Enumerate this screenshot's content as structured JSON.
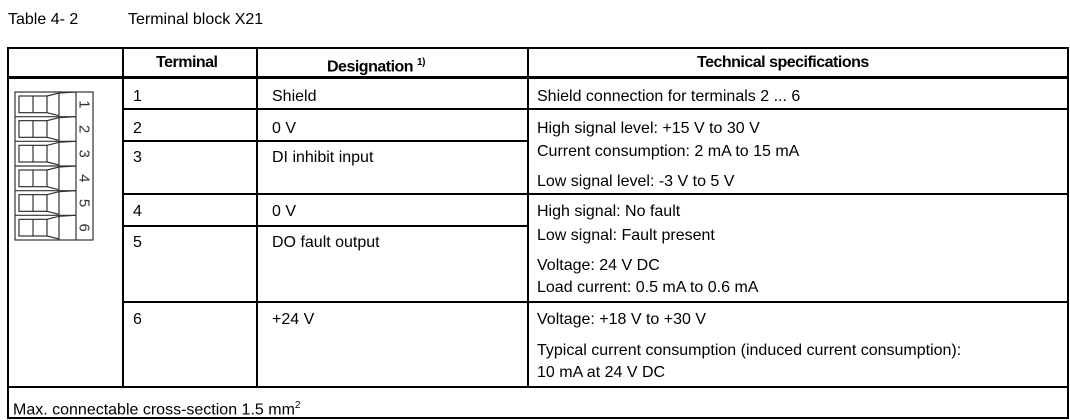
{
  "caption": {
    "number": "Table 4- 2",
    "title": "Terminal block X21"
  },
  "headers": {
    "terminal": "Terminal",
    "designation": "Designation",
    "designation_footnote": "1)",
    "specs": "Technical specifications"
  },
  "connector_labels": [
    "1",
    "2",
    "3",
    "4",
    "5",
    "6"
  ],
  "rows": [
    {
      "terminal": "1",
      "designation": "Shield"
    },
    {
      "terminal": "2",
      "designation": "0 V"
    },
    {
      "terminal": "3",
      "designation": "DI inhibit input"
    },
    {
      "terminal": "4",
      "designation": "0 V"
    },
    {
      "terminal": "5",
      "designation": "DO fault output"
    },
    {
      "terminal": "6",
      "designation": "+24 V"
    }
  ],
  "specs": [
    "Shield connection for terminals 2 ... 6",
    "High signal level: +15 V to 30 V",
    "Current consumption: 2 mA to 15 mA",
    "Low signal level: -3 V to 5 V",
    "High signal: No fault",
    "Low signal: Fault present",
    "Voltage: 24 V DC",
    "Load current: 0.5 mA to 0.6 mA",
    "Voltage: +18 V to +30 V",
    "Typical current consumption (induced current consumption):",
    "10 mA at 24 V DC"
  ],
  "footer": {
    "text": "Max. connectable cross-section 1.5 mm",
    "superscript": "2"
  }
}
